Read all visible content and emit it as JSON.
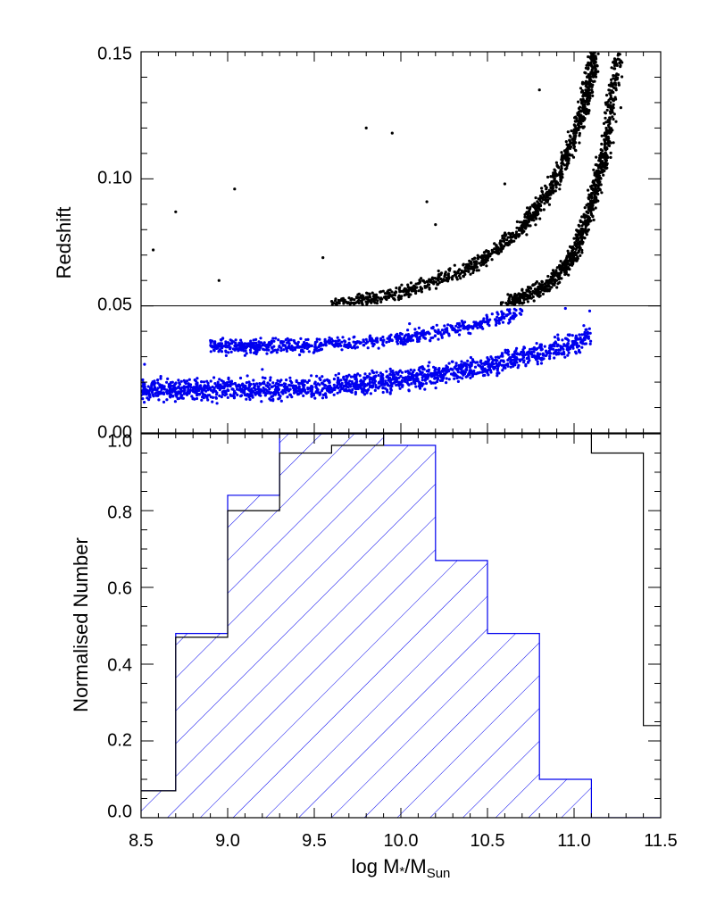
{
  "chart_data": [
    {
      "type": "scatter",
      "title": "",
      "xlabel": "",
      "ylabel": "Redshift",
      "xlim": [
        8.5,
        11.5
      ],
      "ylim": [
        0.0,
        0.15
      ],
      "y_ticks": [
        "0.00",
        "0.05",
        "0.10",
        "0.15"
      ],
      "reference_line": {
        "y": 0.05
      },
      "grid": false,
      "legend": "none",
      "series": [
        {
          "color": "#0000ee",
          "subset": "z < 0.05",
          "bands": [
            {
              "x_range": [
                8.5,
                11.1
              ],
              "z_center": [
                0.017,
                0.038
              ],
              "spread": 0.006
            },
            {
              "x_range": [
                8.9,
                10.7
              ],
              "z_center": [
                0.034,
                0.048
              ],
              "spread": 0.004
            }
          ],
          "points": [
            [
              8.52,
              0.027
            ],
            [
              8.78,
              0.021
            ],
            [
              9.2,
              0.025
            ],
            [
              9.6,
              0.037
            ],
            [
              10.05,
              0.043
            ],
            [
              10.55,
              0.044
            ],
            [
              10.95,
              0.049
            ],
            [
              11.09,
              0.048
            ]
          ]
        },
        {
          "color": "#000000",
          "subset": "z > 0.05",
          "curves": [
            {
              "x": [
                9.6,
                10.0,
                10.4,
                10.7,
                10.9,
                11.05,
                11.12
              ],
              "z": [
                0.05,
                0.055,
                0.065,
                0.08,
                0.1,
                0.125,
                0.15
              ]
            },
            {
              "x": [
                10.6,
                10.85,
                11.0,
                11.1,
                11.18,
                11.25
              ],
              "z": [
                0.05,
                0.058,
                0.07,
                0.09,
                0.11,
                0.15
              ]
            }
          ],
          "points": [
            [
              8.57,
              0.072
            ],
            [
              8.7,
              0.087
            ],
            [
              8.95,
              0.06
            ],
            [
              9.04,
              0.096
            ],
            [
              9.55,
              0.069
            ],
            [
              9.8,
              0.12
            ],
            [
              9.95,
              0.118
            ],
            [
              10.15,
              0.091
            ],
            [
              10.2,
              0.082
            ],
            [
              10.45,
              0.064
            ],
            [
              10.6,
              0.098
            ],
            [
              10.8,
              0.135
            ],
            [
              11.27,
              0.128
            ]
          ]
        }
      ]
    },
    {
      "type": "histogram",
      "title": "",
      "xlabel": "log M*/MSun",
      "ylabel": "Normalised Number",
      "xlim": [
        8.5,
        11.5
      ],
      "ylim": [
        0.0,
        1.0
      ],
      "x_ticks": [
        "8.5",
        "9.0",
        "9.5",
        "10.0",
        "10.5",
        "11.0",
        "11.5"
      ],
      "y_ticks": [
        "0.0",
        "0.2",
        "0.4",
        "0.6",
        "0.8",
        "1.0"
      ],
      "bin_edges": [
        8.4,
        8.7,
        9.0,
        9.3,
        9.6,
        9.9,
        10.2,
        10.5,
        10.8,
        11.1,
        11.4,
        11.7
      ],
      "grid": false,
      "legend": "none",
      "series": [
        {
          "color": "#000000",
          "style": "step",
          "values": [
            0.07,
            0.47,
            0.8,
            0.95,
            0.97,
            1.0,
            1.0,
            1.0,
            1.0,
            0.95,
            0.24
          ]
        },
        {
          "color": "#0000ee",
          "style": "step-hatched",
          "values": [
            0.07,
            0.48,
            0.84,
            1.0,
            1.0,
            0.97,
            0.67,
            0.48,
            0.1,
            0.0,
            0.0
          ]
        }
      ]
    }
  ]
}
